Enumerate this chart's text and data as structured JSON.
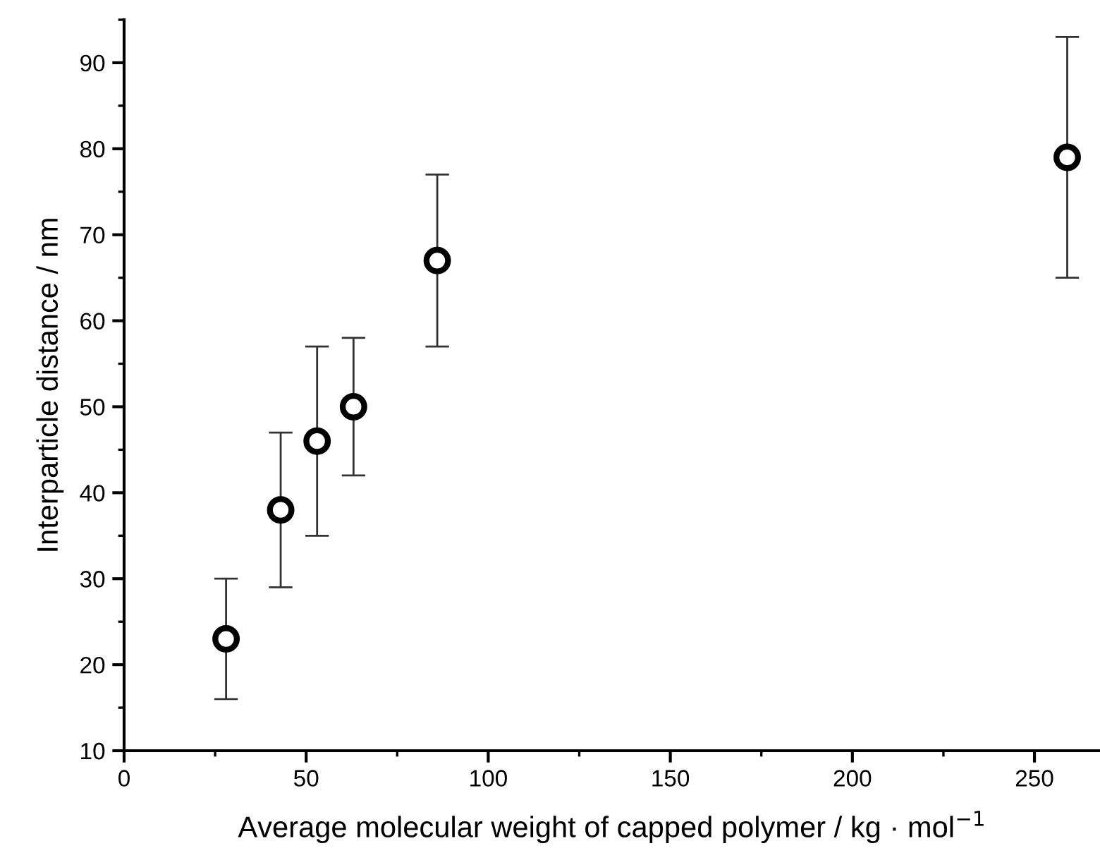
{
  "chart_data": {
    "type": "scatter",
    "xlabel": "Average molecular weight of capped polymer / kg · mol$^{−1}$",
    "ylabel": "Interparticle distance / nm",
    "x": [
      28,
      43,
      53,
      63,
      86,
      259
    ],
    "values": [
      23,
      38,
      46,
      50,
      67,
      79
    ],
    "errors": [
      7,
      9,
      11,
      8,
      10,
      14
    ],
    "color": "#000000",
    "marker": "circle",
    "grid": false,
    "xlim": [
      0,
      268
    ],
    "xticks": [
      0,
      50,
      100,
      150,
      200,
      250
    ],
    "ylim": [
      10,
      95
    ],
    "yticks": [
      10,
      20,
      30,
      40,
      50,
      60,
      70,
      80,
      90
    ]
  }
}
